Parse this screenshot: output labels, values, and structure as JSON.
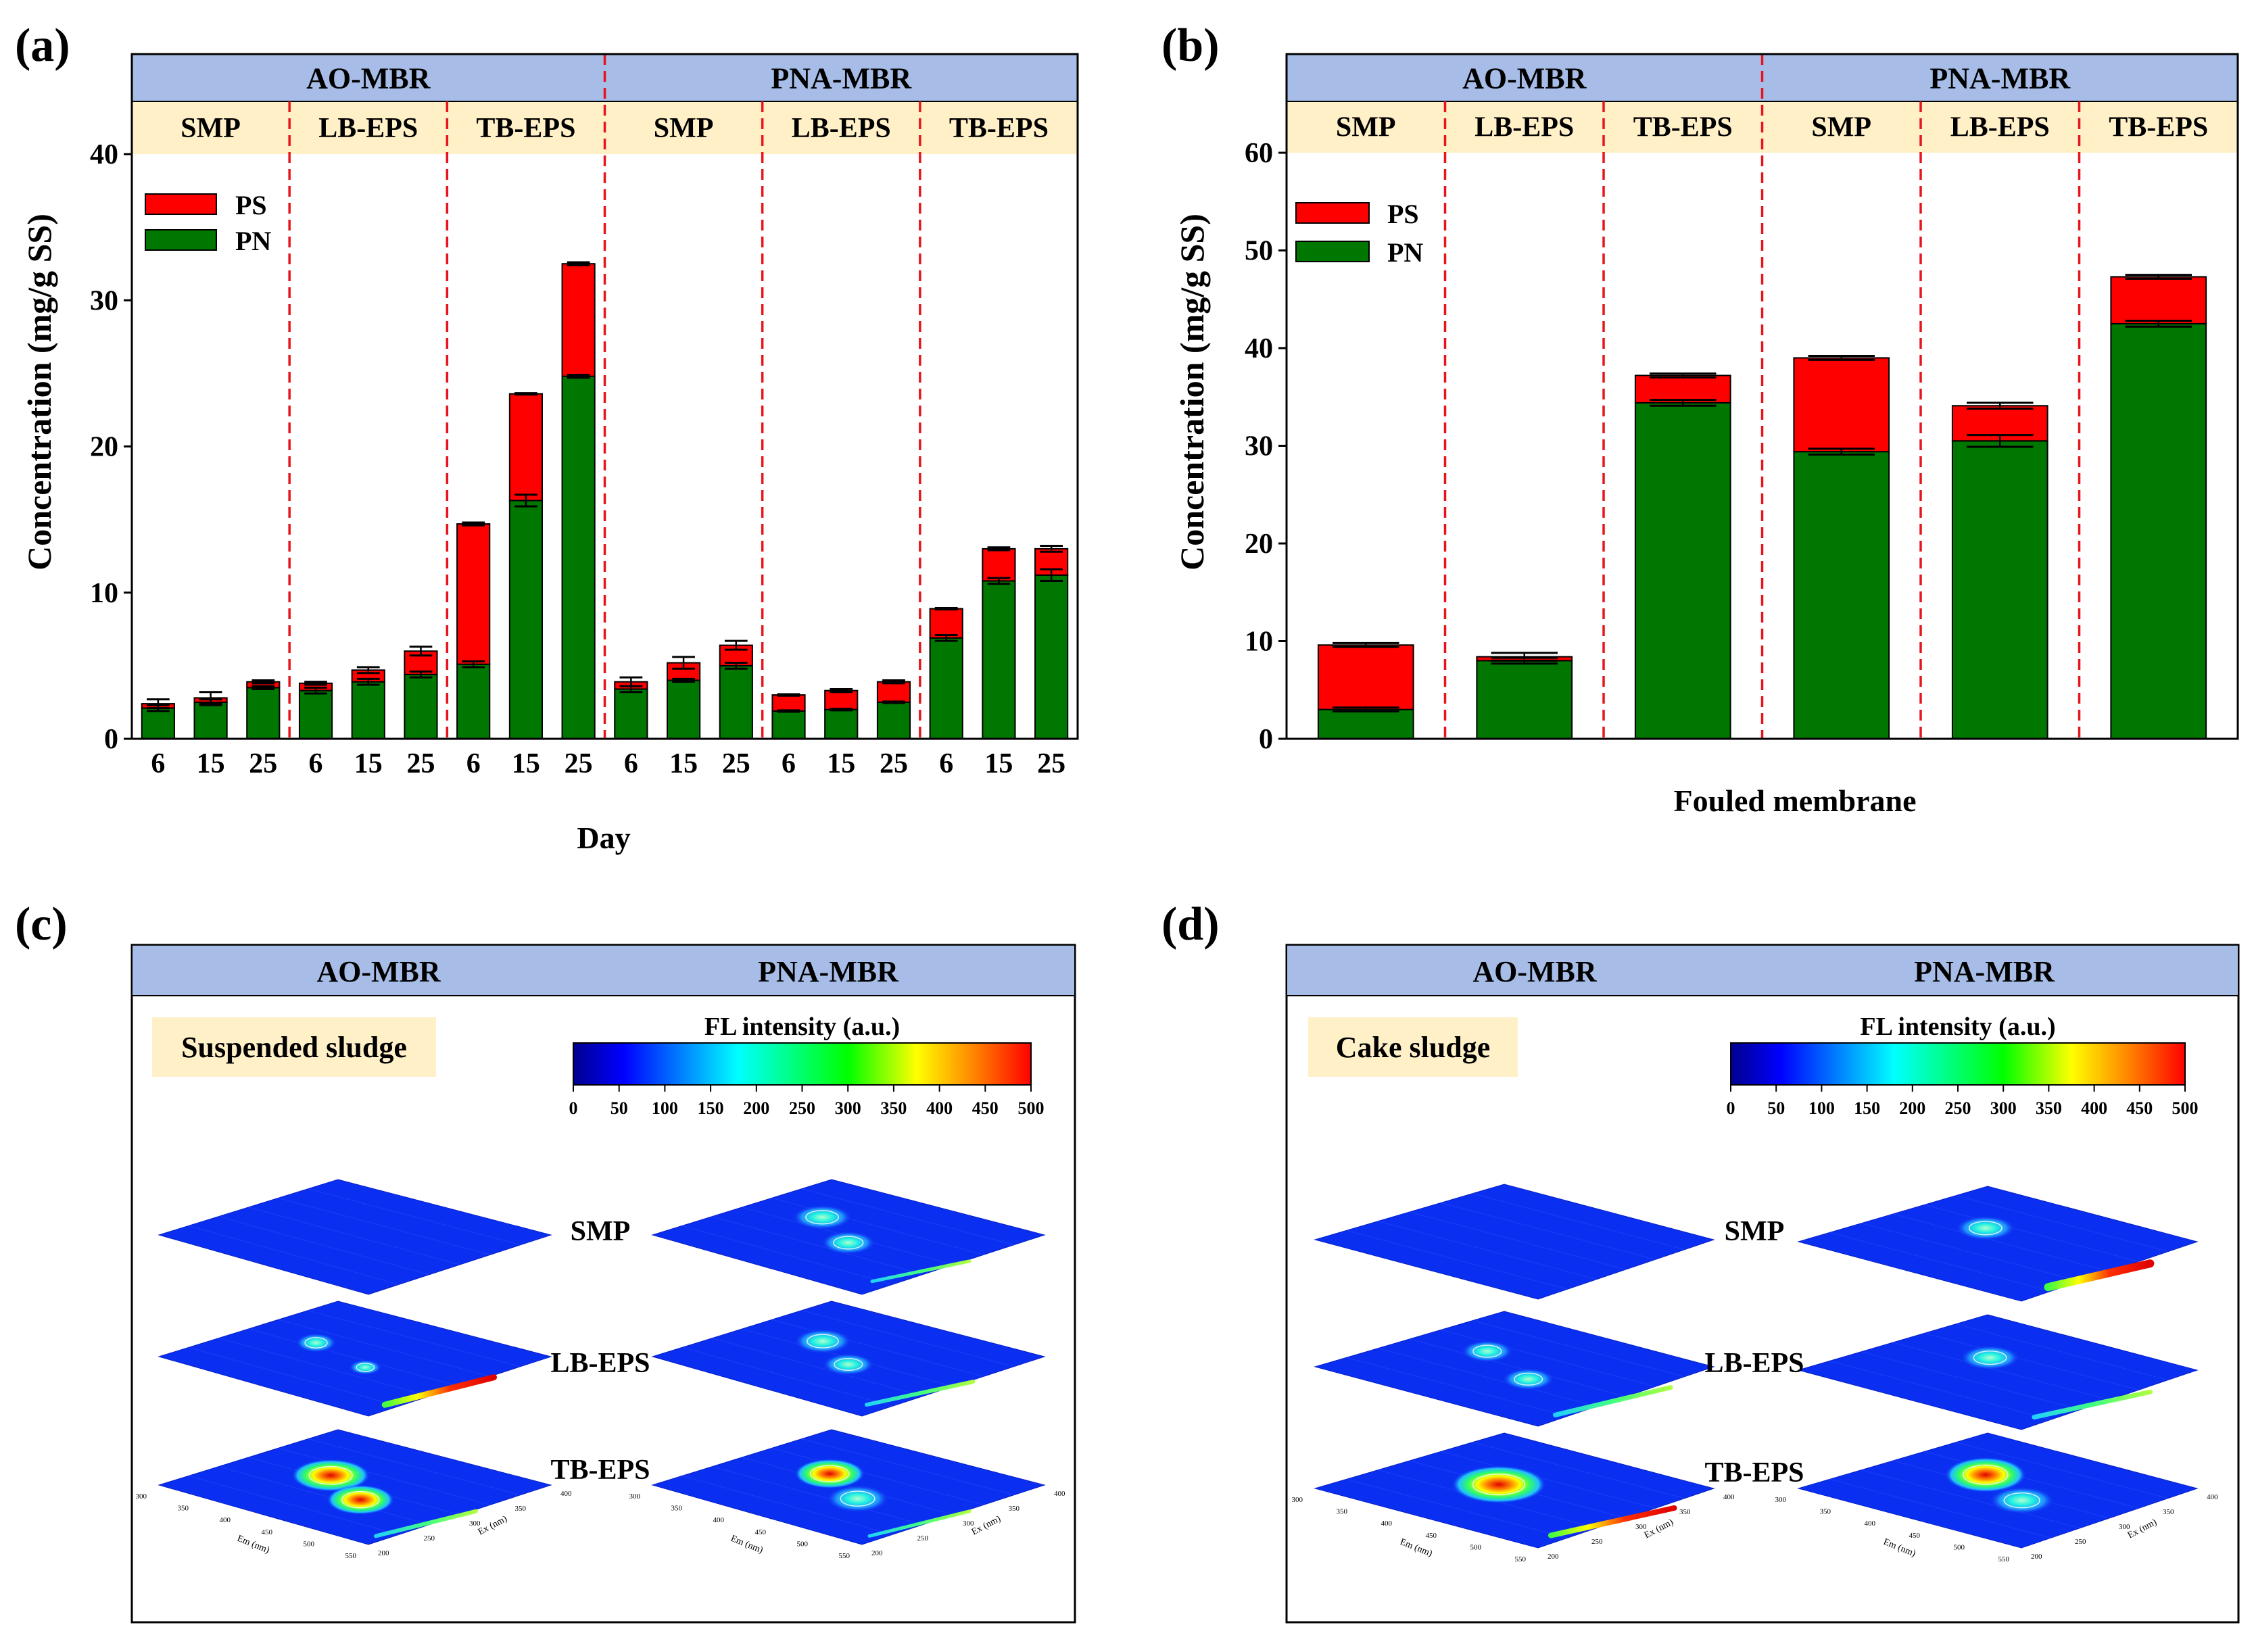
{
  "colors": {
    "ps": "#FF0000",
    "pn": "#007700",
    "header_blue": "#A7BDE7",
    "header_cream": "#FFF0C8",
    "divider": "#E8141C",
    "frame": "#000000",
    "plane_blue": "#0A2FF0"
  },
  "panel_a": {
    "tag": "(a)",
    "ylabel": "Concentration (mg/g SS)",
    "xlabel": "Day",
    "legend": [
      "PS",
      "PN"
    ]
  },
  "panel_b": {
    "tag": "(b)",
    "ylabel": "Concentration (mg/g SS)",
    "xlabel": "Fouled membrane",
    "legend": [
      "PS",
      "PN"
    ]
  },
  "panel_c": {
    "tag": "(c)",
    "headers": [
      "AO-MBR",
      "PNA-MBR"
    ],
    "sample_label": "Suspended sludge",
    "colorbar_title": "FL intensity (a.u.)",
    "colorbar_ticks": [
      "0",
      "50",
      "100",
      "150",
      "200",
      "250",
      "300",
      "350",
      "400",
      "450",
      "500"
    ],
    "layer_labels": [
      "SMP",
      "LB-EPS",
      "TB-EPS"
    ],
    "em_axis_label": "Em (nm)",
    "ex_axis_label": "Ex (nm)",
    "em_ticks": [
      "300",
      "350",
      "400",
      "450",
      "500",
      "550"
    ],
    "ex_ticks": [
      "200",
      "250",
      "300",
      "350",
      "400"
    ]
  },
  "panel_d": {
    "tag": "(d)",
    "headers": [
      "AO-MBR",
      "PNA-MBR"
    ],
    "sample_label": "Cake sludge",
    "colorbar_title": "FL intensity (a.u.)",
    "colorbar_ticks": [
      "0",
      "50",
      "100",
      "150",
      "200",
      "250",
      "300",
      "350",
      "400",
      "450",
      "500"
    ],
    "layer_labels": [
      "SMP",
      "LB-EPS",
      "TB-EPS"
    ],
    "em_axis_label": "Em (nm)",
    "ex_axis_label": "Ex (nm)",
    "em_ticks": [
      "300",
      "350",
      "400",
      "450",
      "500",
      "550"
    ],
    "ex_ticks": [
      "200",
      "250",
      "300",
      "350",
      "400"
    ]
  },
  "chart_data": [
    {
      "id": "a",
      "type": "bar",
      "stacked": true,
      "xlabel": "Day",
      "ylabel": "Concentration (mg/g SS)",
      "ylim": [
        0,
        40
      ],
      "yticks": [
        0,
        10,
        20,
        30,
        40
      ],
      "legend_position": "top-left",
      "group_headers": [
        "AO-MBR",
        "PNA-MBR"
      ],
      "fraction_headers": [
        "SMP",
        "LB-EPS",
        "TB-EPS",
        "SMP",
        "LB-EPS",
        "TB-EPS"
      ],
      "categories": [
        "6",
        "15",
        "25",
        "6",
        "15",
        "25",
        "6",
        "15",
        "25",
        "6",
        "15",
        "25",
        "6",
        "15",
        "25",
        "6",
        "15",
        "25"
      ],
      "series": [
        {
          "name": "PN",
          "values": [
            2.1,
            2.5,
            3.5,
            3.3,
            3.9,
            4.4,
            5.1,
            16.3,
            24.8,
            3.4,
            4.0,
            5.0,
            1.9,
            2.0,
            2.5,
            6.9,
            10.8,
            11.2
          ]
        },
        {
          "name": "PS",
          "values": [
            0.3,
            0.3,
            0.4,
            0.5,
            0.8,
            1.6,
            9.6,
            7.3,
            7.7,
            0.5,
            1.2,
            1.4,
            1.1,
            1.3,
            1.4,
            2.0,
            2.2,
            1.8
          ]
        }
      ],
      "error_pn": [
        0.2,
        0.2,
        0.1,
        0.2,
        0.2,
        0.2,
        0.2,
        0.4,
        0.1,
        0.2,
        0.1,
        0.2,
        0.05,
        0.05,
        0.05,
        0.2,
        0.2,
        0.4
      ],
      "error_total": [
        0.3,
        0.4,
        0.1,
        0.1,
        0.2,
        0.3,
        0.1,
        0.05,
        0.1,
        0.3,
        0.4,
        0.3,
        0.05,
        0.1,
        0.1,
        0.05,
        0.1,
        0.2
      ]
    },
    {
      "id": "b",
      "type": "bar",
      "stacked": true,
      "xlabel": "Fouled membrane",
      "ylabel": "Concentration (mg/g SS)",
      "ylim": [
        0,
        60
      ],
      "yticks": [
        0,
        10,
        20,
        30,
        40,
        50,
        60
      ],
      "legend_position": "top-left",
      "group_headers": [
        "AO-MBR",
        "PNA-MBR"
      ],
      "fraction_headers": [
        "SMP",
        "LB-EPS",
        "TB-EPS",
        "SMP",
        "LB-EPS",
        "TB-EPS"
      ],
      "series": [
        {
          "name": "PN",
          "values": [
            3.0,
            8.0,
            34.4,
            29.4,
            30.5,
            42.5
          ]
        },
        {
          "name": "PS",
          "values": [
            6.6,
            0.4,
            2.8,
            9.6,
            3.6,
            4.8
          ]
        }
      ],
      "error_pn": [
        0.2,
        0.3,
        0.3,
        0.3,
        0.6,
        0.3
      ],
      "error_total": [
        0.2,
        0.4,
        0.2,
        0.2,
        0.3,
        0.2
      ]
    }
  ]
}
